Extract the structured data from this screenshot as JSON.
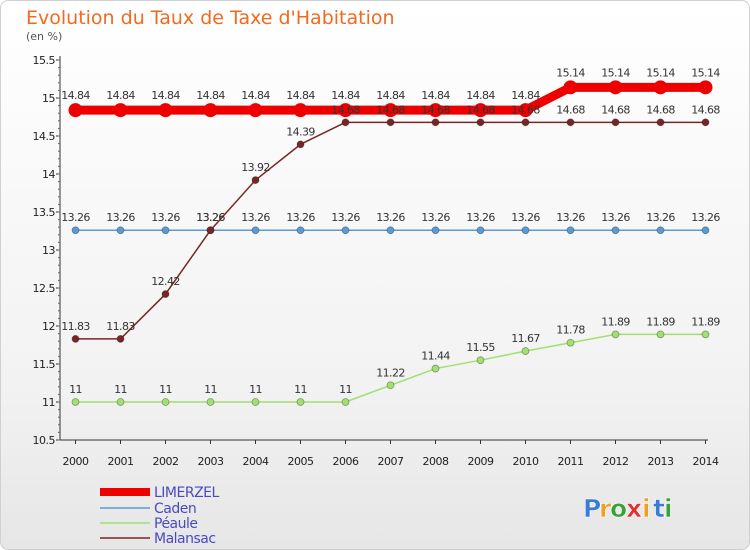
{
  "chart_data": {
    "type": "line",
    "title": "Evolution du Taux de Taxe d'Habitation",
    "subtitle": "(en %)",
    "xlabel": "",
    "ylabel": "",
    "x": [
      "2000",
      "2001",
      "2002",
      "2003",
      "2004",
      "2005",
      "2006",
      "2007",
      "2008",
      "2009",
      "2010",
      "2011",
      "2012",
      "2013",
      "2014"
    ],
    "ylim": [
      10.5,
      15.5
    ],
    "yticks": [
      "10.5",
      "11",
      "11.5",
      "12",
      "12.5",
      "13",
      "13.5",
      "14",
      "14.5",
      "15",
      "15.5"
    ],
    "grid": false,
    "legend_position": "bottom-left",
    "series": [
      {
        "name": "LIMERZEL",
        "color": "#ee0000",
        "width": 9,
        "point_r": 7,
        "values": [
          14.84,
          14.84,
          14.84,
          14.84,
          14.84,
          14.84,
          14.84,
          14.84,
          14.84,
          14.84,
          14.84,
          15.14,
          15.14,
          15.14,
          15.14
        ],
        "labels": [
          "14.84",
          "14.84",
          "14.84",
          "14.84",
          "14.84",
          "14.84",
          "14.84",
          "14.84",
          "14.84",
          "14.84",
          "14.84",
          "15.14",
          "15.14",
          "15.14",
          "15.14"
        ]
      },
      {
        "name": "Caden",
        "color": "#5b9bd5",
        "width": 1.5,
        "point_r": 3.5,
        "values": [
          13.26,
          13.26,
          13.26,
          13.26,
          13.26,
          13.26,
          13.26,
          13.26,
          13.26,
          13.26,
          13.26,
          13.26,
          13.26,
          13.26,
          13.26
        ],
        "labels": [
          "13.26",
          "13.26",
          "13.26",
          "13.26",
          "13.26",
          "13.26",
          "13.26",
          "13.26",
          "13.26",
          "13.26",
          "13.26",
          "13.26",
          "13.26",
          "13.26",
          "13.26"
        ]
      },
      {
        "name": "Péaule",
        "color": "#a0e070",
        "width": 1.5,
        "point_r": 3.5,
        "values": [
          11,
          11,
          11,
          11,
          11,
          11,
          11,
          11.22,
          11.44,
          11.55,
          11.67,
          11.78,
          11.89,
          11.89,
          11.89
        ],
        "labels": [
          "11",
          "11",
          "11",
          "11",
          "11",
          "11",
          "11",
          "11.22",
          "11.44",
          "11.55",
          "11.67",
          "11.78",
          "11.89",
          "11.89",
          "11.89"
        ]
      },
      {
        "name": "Malansac",
        "color": "#7a2525",
        "width": 1.5,
        "point_r": 3.5,
        "values": [
          11.83,
          11.83,
          12.42,
          13.26,
          13.92,
          14.39,
          14.68,
          14.68,
          14.68,
          14.68,
          14.68,
          14.68,
          14.68,
          14.68,
          14.68
        ],
        "labels": [
          "11.83",
          "11.83",
          "12.42",
          "13.26",
          "13.92",
          "14.39",
          "14.68",
          "14.68",
          "14.68",
          "14.68",
          "14.68",
          "14.68",
          "14.68",
          "14.68",
          "14.68"
        ]
      }
    ]
  },
  "brand": {
    "letters": [
      "P",
      "r",
      "o",
      "x",
      "i",
      "t",
      "i"
    ],
    "colors": [
      "#3a7bd5",
      "#f0a020",
      "#3aa03a",
      "#e03030",
      "#f0a020",
      "#3a7bd5",
      "#3aa03a"
    ]
  }
}
